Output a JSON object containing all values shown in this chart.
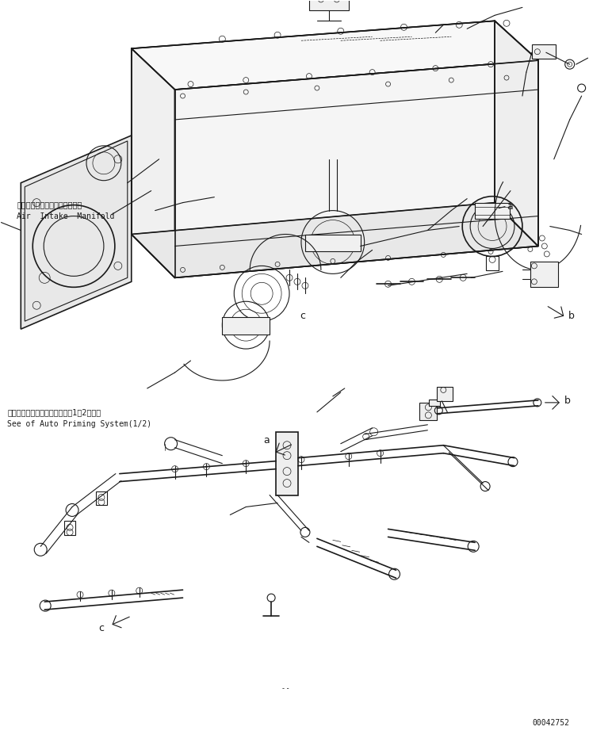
{
  "figure_width": 7.43,
  "figure_height": 9.31,
  "dpi": 100,
  "bg_color": "#ffffff",
  "line_color": "#1a1a1a",
  "text_japanese_1": "エアーインテークマニホールド",
  "text_english_1": "Air  Intake  Manifold",
  "text_japanese_2": "オートプライミングシステム（1／2）参照",
  "text_english_2": "See of Auto Priming System(1/2)",
  "watermark": "00042752",
  "font_size_label": 9,
  "font_size_text_ja": 7,
  "font_size_text_en": 7,
  "font_size_watermark": 7
}
